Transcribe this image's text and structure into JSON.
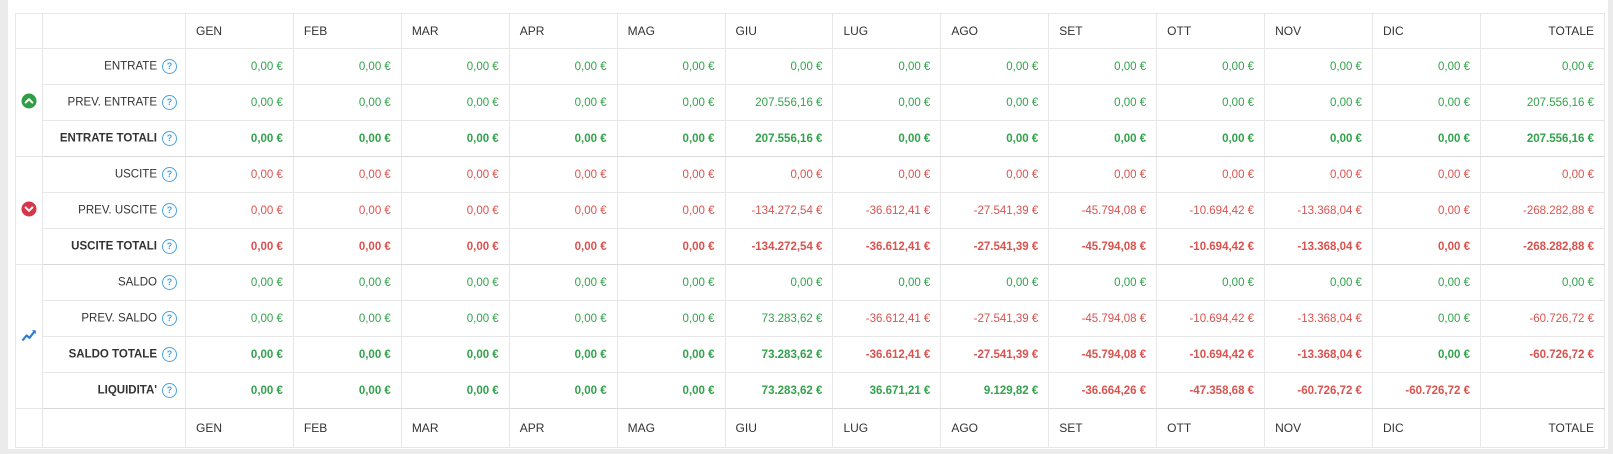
{
  "table": {
    "months": [
      "GEN",
      "FEB",
      "MAR",
      "APR",
      "MAG",
      "GIU",
      "LUG",
      "AGO",
      "SET",
      "OTT",
      "NOV",
      "DIC"
    ],
    "total_label": "TOTALE",
    "help_glyph": "?",
    "currency_suffix": "€",
    "groups": [
      {
        "name": "entrate",
        "icon": "chevron-up-circle-icon",
        "span": 3,
        "color": "#2f9e44"
      },
      {
        "name": "uscite",
        "icon": "chevron-down-circle-icon",
        "span": 3,
        "color": "#d63649"
      },
      {
        "name": "saldo",
        "icon": "chart-line-icon",
        "span": 4,
        "color": "#2e7cd6"
      }
    ],
    "rows": [
      {
        "label": "ENTRATE",
        "bold": false,
        "group": 0,
        "values": [
          "0,00 €",
          "0,00 €",
          "0,00 €",
          "0,00 €",
          "0,00 €",
          "0,00 €",
          "0,00 €",
          "0,00 €",
          "0,00 €",
          "0,00 €",
          "0,00 €",
          "0,00 €",
          "0,00 €"
        ],
        "signs": [
          "g",
          "g",
          "g",
          "g",
          "g",
          "g",
          "g",
          "g",
          "g",
          "g",
          "g",
          "g",
          "g"
        ]
      },
      {
        "label": "PREV. ENTRATE",
        "bold": false,
        "group": 0,
        "values": [
          "0,00 €",
          "0,00 €",
          "0,00 €",
          "0,00 €",
          "0,00 €",
          "207.556,16 €",
          "0,00 €",
          "0,00 €",
          "0,00 €",
          "0,00 €",
          "0,00 €",
          "0,00 €",
          "207.556,16 €"
        ],
        "signs": [
          "g",
          "g",
          "g",
          "g",
          "g",
          "g",
          "g",
          "g",
          "g",
          "g",
          "g",
          "g",
          "g"
        ]
      },
      {
        "label": "ENTRATE TOTALI",
        "bold": true,
        "group": 0,
        "values": [
          "0,00 €",
          "0,00 €",
          "0,00 €",
          "0,00 €",
          "0,00 €",
          "207.556,16 €",
          "0,00 €",
          "0,00 €",
          "0,00 €",
          "0,00 €",
          "0,00 €",
          "0,00 €",
          "207.556,16 €"
        ],
        "signs": [
          "g",
          "g",
          "g",
          "g",
          "g",
          "g",
          "g",
          "g",
          "g",
          "g",
          "g",
          "g",
          "g"
        ]
      },
      {
        "label": "USCITE",
        "bold": false,
        "group": 1,
        "values": [
          "0,00 €",
          "0,00 €",
          "0,00 €",
          "0,00 €",
          "0,00 €",
          "0,00 €",
          "0,00 €",
          "0,00 €",
          "0,00 €",
          "0,00 €",
          "0,00 €",
          "0,00 €",
          "0,00 €"
        ],
        "signs": [
          "r",
          "r",
          "r",
          "r",
          "r",
          "r",
          "r",
          "r",
          "r",
          "r",
          "r",
          "r",
          "r"
        ]
      },
      {
        "label": "PREV. USCITE",
        "bold": false,
        "group": 1,
        "values": [
          "0,00 €",
          "0,00 €",
          "0,00 €",
          "0,00 €",
          "0,00 €",
          "-134.272,54 €",
          "-36.612,41 €",
          "-27.541,39 €",
          "-45.794,08 €",
          "-10.694,42 €",
          "-13.368,04 €",
          "0,00 €",
          "-268.282,88 €"
        ],
        "signs": [
          "r",
          "r",
          "r",
          "r",
          "r",
          "r",
          "r",
          "r",
          "r",
          "r",
          "r",
          "r",
          "r"
        ]
      },
      {
        "label": "USCITE TOTALI",
        "bold": true,
        "group": 1,
        "values": [
          "0,00 €",
          "0,00 €",
          "0,00 €",
          "0,00 €",
          "0,00 €",
          "-134.272,54 €",
          "-36.612,41 €",
          "-27.541,39 €",
          "-45.794,08 €",
          "-10.694,42 €",
          "-13.368,04 €",
          "0,00 €",
          "-268.282,88 €"
        ],
        "signs": [
          "r",
          "r",
          "r",
          "r",
          "r",
          "r",
          "r",
          "r",
          "r",
          "r",
          "r",
          "r",
          "r"
        ]
      },
      {
        "label": "SALDO",
        "bold": false,
        "group": 2,
        "values": [
          "0,00 €",
          "0,00 €",
          "0,00 €",
          "0,00 €",
          "0,00 €",
          "0,00 €",
          "0,00 €",
          "0,00 €",
          "0,00 €",
          "0,00 €",
          "0,00 €",
          "0,00 €",
          "0,00 €"
        ],
        "signs": [
          "g",
          "g",
          "g",
          "g",
          "g",
          "g",
          "g",
          "g",
          "g",
          "g",
          "g",
          "g",
          "g"
        ]
      },
      {
        "label": "PREV. SALDO",
        "bold": false,
        "group": 2,
        "values": [
          "0,00 €",
          "0,00 €",
          "0,00 €",
          "0,00 €",
          "0,00 €",
          "73.283,62 €",
          "-36.612,41 €",
          "-27.541,39 €",
          "-45.794,08 €",
          "-10.694,42 €",
          "-13.368,04 €",
          "0,00 €",
          "-60.726,72 €"
        ],
        "signs": [
          "g",
          "g",
          "g",
          "g",
          "g",
          "g",
          "r",
          "r",
          "r",
          "r",
          "r",
          "g",
          "r"
        ]
      },
      {
        "label": "SALDO TOTALE",
        "bold": true,
        "group": 2,
        "values": [
          "0,00 €",
          "0,00 €",
          "0,00 €",
          "0,00 €",
          "0,00 €",
          "73.283,62 €",
          "-36.612,41 €",
          "-27.541,39 €",
          "-45.794,08 €",
          "-10.694,42 €",
          "-13.368,04 €",
          "0,00 €",
          "-60.726,72 €"
        ],
        "signs": [
          "g",
          "g",
          "g",
          "g",
          "g",
          "g",
          "r",
          "r",
          "r",
          "r",
          "r",
          "g",
          "r"
        ]
      },
      {
        "label": "LIQUIDITA'",
        "bold": true,
        "group": 2,
        "values": [
          "0,00 €",
          "0,00 €",
          "0,00 €",
          "0,00 €",
          "0,00 €",
          "73.283,62 €",
          "36.671,21 €",
          "9.129,82 €",
          "-36.664,26 €",
          "-47.358,68 €",
          "-60.726,72 €",
          "-60.726,72 €",
          ""
        ],
        "signs": [
          "g",
          "g",
          "g",
          "g",
          "g",
          "g",
          "g",
          "g",
          "r",
          "r",
          "r",
          "r",
          ""
        ]
      }
    ],
    "colors": {
      "positive": "#33a24c",
      "negative": "#d9534f",
      "help_blue": "#4aa3e2",
      "group_green": "#2f9e44",
      "group_red": "#d63649",
      "chart_blue": "#2e7cd6"
    }
  }
}
